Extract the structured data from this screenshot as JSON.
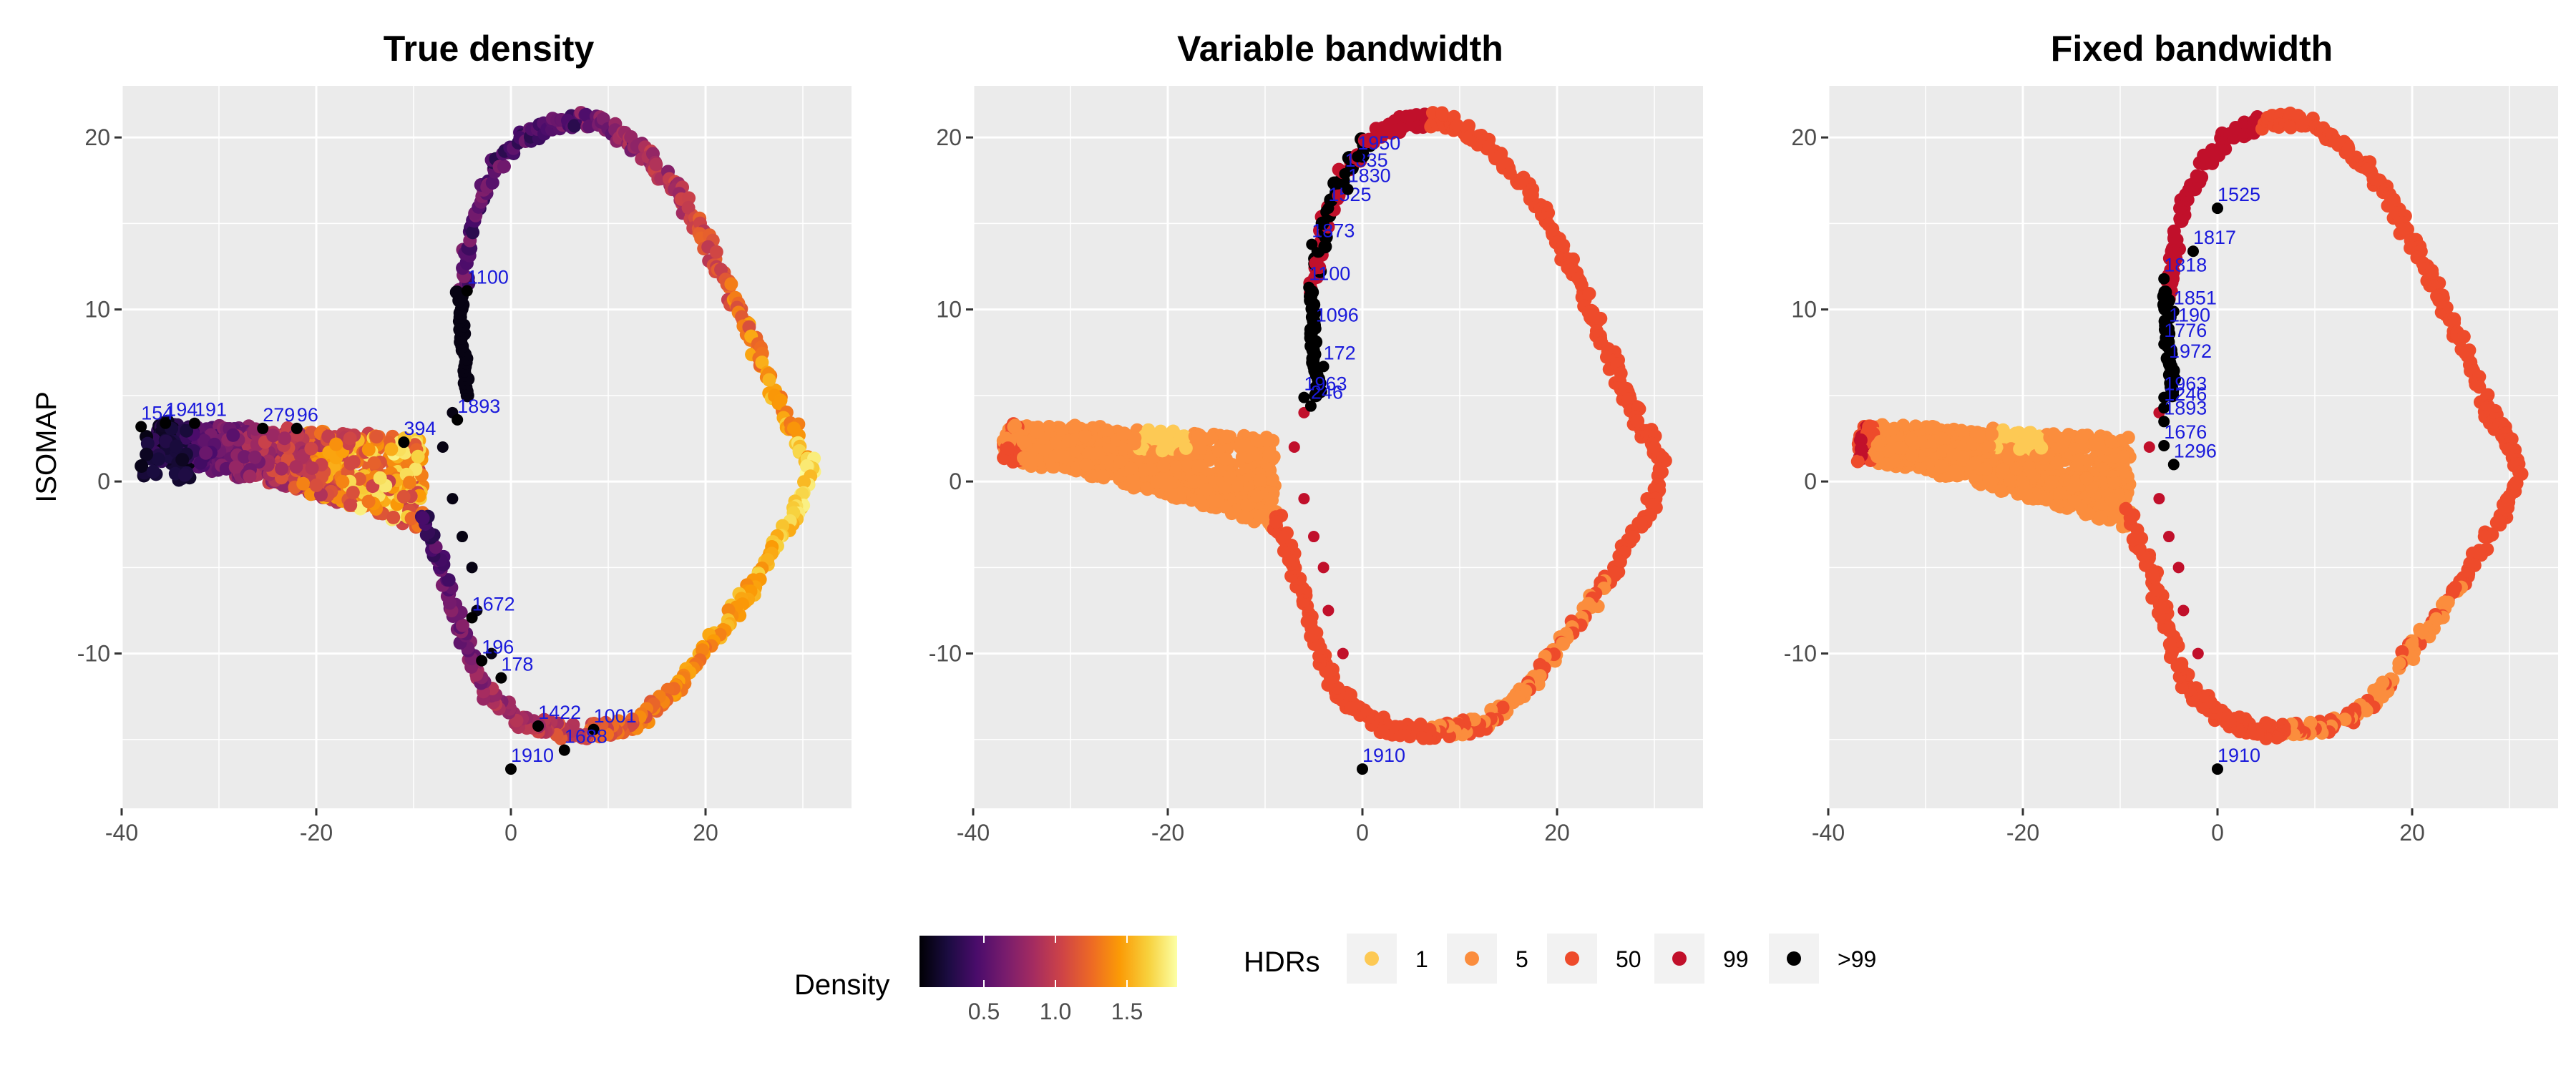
{
  "chart_data": [
    {
      "type": "scatter",
      "title": "True density",
      "xlabel": "",
      "ylabel": "ISOMAP",
      "xlim": [
        -40,
        35
      ],
      "ylim": [
        -19,
        23
      ],
      "x_ticks": [
        "-40",
        "-20",
        "0",
        "20"
      ],
      "y_ticks": [
        "-10",
        "0",
        "10",
        "20"
      ],
      "color_by": "Density",
      "annotations": [
        {
          "label": "1100",
          "x": -4.5,
          "y": 11.5
        },
        {
          "label": "1893",
          "x": -5.5,
          "y": 4.0
        },
        {
          "label": "394",
          "x": -11,
          "y": 2.7
        },
        {
          "label": "279",
          "x": -25.5,
          "y": 3.5
        },
        {
          "label": "96",
          "x": -22,
          "y": 3.5
        },
        {
          "label": "191",
          "x": -32.5,
          "y": 3.8
        },
        {
          "label": "154",
          "x": -38,
          "y": 3.6
        },
        {
          "label": "194",
          "x": -35.5,
          "y": 3.8
        },
        {
          "label": "1672",
          "x": -4,
          "y": -7.5
        },
        {
          "label": "196",
          "x": -3,
          "y": -10
        },
        {
          "label": "178",
          "x": -1,
          "y": -11
        },
        {
          "label": "1422",
          "x": 2.8,
          "y": -13.8
        },
        {
          "label": "1001",
          "x": 8.5,
          "y": -14.0
        },
        {
          "label": "1688",
          "x": 5.5,
          "y": -15.2
        },
        {
          "label": "1910",
          "x": 0,
          "y": -16.3
        }
      ]
    },
    {
      "type": "scatter",
      "title": "Variable bandwidth",
      "xlabel": "",
      "ylabel": "",
      "xlim": [
        -40,
        35
      ],
      "ylim": [
        -19,
        23
      ],
      "x_ticks": [
        "-40",
        "-20",
        "0",
        "20"
      ],
      "y_ticks": [
        "-10",
        "0",
        "10",
        "20"
      ],
      "color_by": "HDRs",
      "annotations": [
        {
          "label": "1100",
          "x": -5.5,
          "y": 11.7
        },
        {
          "label": "1096",
          "x": -4.8,
          "y": 9.3
        },
        {
          "label": "172",
          "x": -4,
          "y": 7.1
        },
        {
          "label": "1963",
          "x": -6,
          "y": 5.3
        },
        {
          "label": "246",
          "x": -5.3,
          "y": 4.8
        },
        {
          "label": "1873",
          "x": -5.2,
          "y": 14.2
        },
        {
          "label": "1525",
          "x": -3.5,
          "y": 16.3
        },
        {
          "label": "1830",
          "x": -1.5,
          "y": 17.4
        },
        {
          "label": "1835",
          "x": -1.8,
          "y": 18.3
        },
        {
          "label": "1950",
          "x": -0.5,
          "y": 19.3
        },
        {
          "label": "1910",
          "x": 0,
          "y": -16.3
        }
      ]
    },
    {
      "type": "scatter",
      "title": "Fixed bandwidth",
      "xlabel": "",
      "ylabel": "",
      "xlim": [
        -40,
        35
      ],
      "ylim": [
        -19,
        23
      ],
      "x_ticks": [
        "-40",
        "-20",
        "0",
        "20"
      ],
      "y_ticks": [
        "-10",
        "0",
        "10",
        "20"
      ],
      "color_by": "HDRs",
      "annotations": [
        {
          "label": "1525",
          "x": 0,
          "y": 16.3
        },
        {
          "label": "1817",
          "x": -2.5,
          "y": 13.8
        },
        {
          "label": "1818",
          "x": -5.5,
          "y": 12.2
        },
        {
          "label": "1851",
          "x": -4.5,
          "y": 10.3
        },
        {
          "label": "1190",
          "x": -5,
          "y": 9.3
        },
        {
          "label": "1776",
          "x": -5.5,
          "y": 8.4
        },
        {
          "label": "1972",
          "x": -5,
          "y": 7.2
        },
        {
          "label": "1963",
          "x": -5.5,
          "y": 5.3
        },
        {
          "label": "1246",
          "x": -5.5,
          "y": 4.7
        },
        {
          "label": "1893",
          "x": -5.5,
          "y": 3.9
        },
        {
          "label": "1676",
          "x": -5.5,
          "y": 2.5
        },
        {
          "label": "1296",
          "x": -4.5,
          "y": 1.4
        },
        {
          "label": "1910",
          "x": 0,
          "y": -16.3
        }
      ]
    }
  ],
  "legend_density": {
    "title": "Density",
    "breaks": [
      "0.5",
      "1.0",
      "1.5"
    ],
    "range": [
      0.05,
      1.85
    ],
    "colors": [
      "#000004",
      "#1b0c41",
      "#4a0c6b",
      "#781c6d",
      "#a52c60",
      "#cf4446",
      "#ed6925",
      "#fb9b06",
      "#f7d13d",
      "#fcffa4"
    ]
  },
  "legend_hdr": {
    "title": "HDRs",
    "items": [
      {
        "label": "1",
        "color": "#fdc954"
      },
      {
        "label": "5",
        "color": "#fb8d3d"
      },
      {
        "label": "50",
        "color": "#ee4b2b"
      },
      {
        "label": "99",
        "color": "#c1102b"
      },
      {
        "label": ">99",
        "color": "#000000"
      }
    ]
  }
}
